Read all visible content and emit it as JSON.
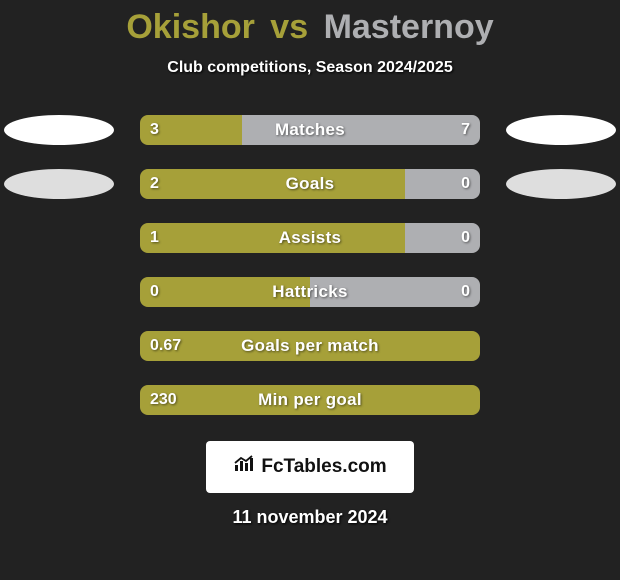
{
  "background_color": "#222222",
  "title": {
    "player1": "Okishor",
    "vs": "vs",
    "player2": "Masternoy",
    "player1_color": "#a6a039",
    "player2_color": "#aeafb2",
    "fontsize": 34
  },
  "subtitle": "Club competitions, Season 2024/2025",
  "bar": {
    "left_color": "#a6a039",
    "right_color": "#aeafb2",
    "track_width": 340,
    "track_height": 30,
    "label_fontsize": 17,
    "value_fontsize": 16,
    "value_color": "#ffffff"
  },
  "ellipse": {
    "left_color": "#ffffff",
    "right_color": "#ffffff",
    "width": 110,
    "height": 30
  },
  "rows": [
    {
      "label": "Matches",
      "left_value": "3",
      "right_value": "7",
      "left_pct": 30,
      "right_pct": 70,
      "show_ellipses": true,
      "ellipse_left_opacity": 1.0,
      "ellipse_right_opacity": 1.0
    },
    {
      "label": "Goals",
      "left_value": "2",
      "right_value": "0",
      "left_pct": 78,
      "right_pct": 22,
      "show_ellipses": true,
      "ellipse_left_opacity": 0.85,
      "ellipse_right_opacity": 0.85
    },
    {
      "label": "Assists",
      "left_value": "1",
      "right_value": "0",
      "left_pct": 78,
      "right_pct": 22,
      "show_ellipses": false
    },
    {
      "label": "Hattricks",
      "left_value": "0",
      "right_value": "0",
      "left_pct": 50,
      "right_pct": 50,
      "show_ellipses": false
    },
    {
      "label": "Goals per match",
      "left_value": "0.67",
      "right_value": "",
      "left_pct": 100,
      "right_pct": 0,
      "show_ellipses": false
    },
    {
      "label": "Min per goal",
      "left_value": "230",
      "right_value": "",
      "left_pct": 100,
      "right_pct": 0,
      "show_ellipses": false
    }
  ],
  "logo": {
    "text": "FcTables.com",
    "bg_color": "#ffffff",
    "text_color": "#111111",
    "icon_color": "#111111"
  },
  "date": "11 november 2024"
}
